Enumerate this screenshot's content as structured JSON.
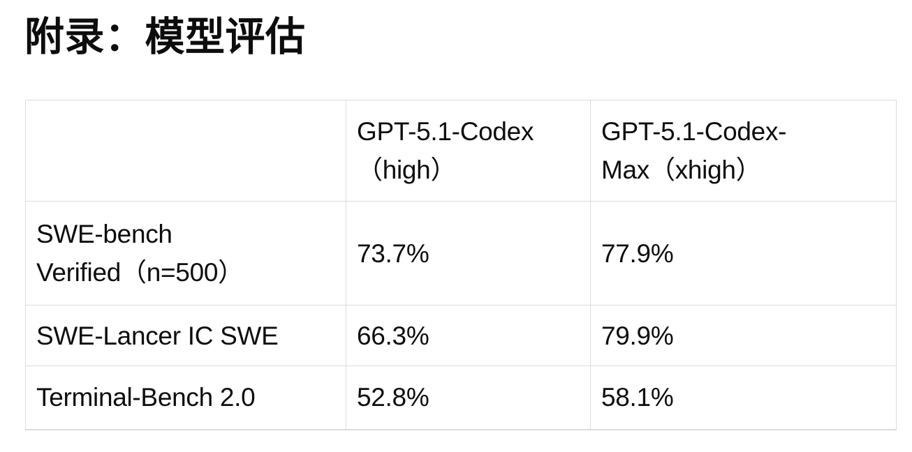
{
  "page": {
    "title": "附录：模型评估"
  },
  "table": {
    "columns": [
      "GPT-5.1-Codex\n（high）",
      "GPT-5.1-Codex-\nMax（xhigh）"
    ],
    "rows": [
      {
        "benchmark": "SWE-bench\nVerified（n=500）",
        "values": [
          "73.7%",
          "77.9%"
        ]
      },
      {
        "benchmark": "SWE-Lancer IC SWE",
        "values": [
          "66.3%",
          "79.9%"
        ]
      },
      {
        "benchmark": "Terminal-Bench 2.0",
        "values": [
          "52.8%",
          "58.1%"
        ]
      }
    ]
  }
}
